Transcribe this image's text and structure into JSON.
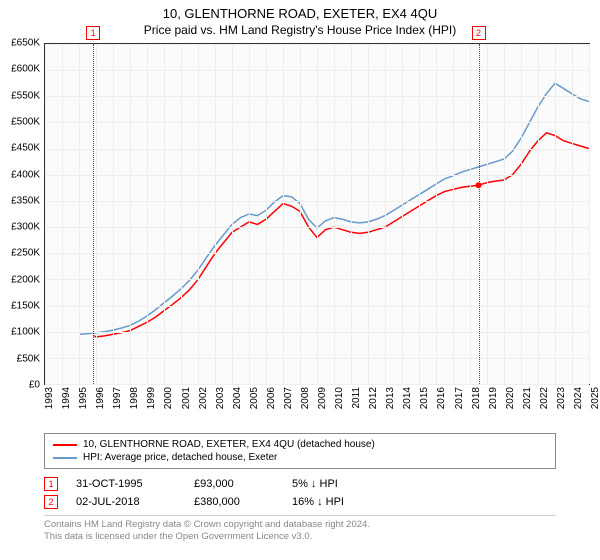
{
  "title": "10, GLENTHORNE ROAD, EXETER, EX4 4QU",
  "subtitle": "Price paid vs. HM Land Registry's House Price Index (HPI)",
  "chart": {
    "type": "line",
    "background_color": "#fbfbfb",
    "grid_color": "#eeeeee",
    "border_color": "#333333",
    "y": {
      "min": 0,
      "max": 650,
      "ticks": [
        0,
        50,
        100,
        150,
        200,
        250,
        300,
        350,
        400,
        450,
        500,
        550,
        600,
        650
      ],
      "labels": [
        "£0",
        "£50K",
        "£100K",
        "£150K",
        "£200K",
        "£250K",
        "£300K",
        "£350K",
        "£400K",
        "£450K",
        "£500K",
        "£550K",
        "£600K",
        "£650K"
      ],
      "label_fontsize": 10
    },
    "x": {
      "min": 1993,
      "max": 2025,
      "ticks": [
        1993,
        1994,
        1995,
        1996,
        1997,
        1998,
        1999,
        2000,
        2001,
        2002,
        2003,
        2004,
        2005,
        2006,
        2007,
        2008,
        2009,
        2010,
        2011,
        2012,
        2013,
        2014,
        2015,
        2016,
        2017,
        2018,
        2019,
        2020,
        2021,
        2022,
        2023,
        2024,
        2025
      ],
      "label_fontsize": 10
    },
    "markers": [
      {
        "id": "1",
        "x": 1995.83,
        "color": "#ff0000"
      },
      {
        "id": "2",
        "x": 2018.5,
        "color": "#ff0000"
      }
    ],
    "series": [
      {
        "name": "property",
        "label": "10, GLENTHORNE ROAD, EXETER, EX4 4QU (detached house)",
        "color": "#ff0000",
        "line_width": 1.5,
        "points": [
          [
            1995.83,
            93
          ],
          [
            1996.0,
            90
          ],
          [
            1996.5,
            92
          ],
          [
            1997.0,
            95
          ],
          [
            1997.5,
            98
          ],
          [
            1998.0,
            102
          ],
          [
            1998.5,
            110
          ],
          [
            1999.0,
            118
          ],
          [
            1999.5,
            128
          ],
          [
            2000.0,
            140
          ],
          [
            2000.5,
            152
          ],
          [
            2001.0,
            165
          ],
          [
            2001.5,
            180
          ],
          [
            2002.0,
            200
          ],
          [
            2002.5,
            225
          ],
          [
            2003.0,
            250
          ],
          [
            2003.5,
            270
          ],
          [
            2004.0,
            290
          ],
          [
            2004.5,
            300
          ],
          [
            2005.0,
            310
          ],
          [
            2005.5,
            305
          ],
          [
            2006.0,
            315
          ],
          [
            2006.5,
            330
          ],
          [
            2007.0,
            345
          ],
          [
            2007.5,
            340
          ],
          [
            2008.0,
            330
          ],
          [
            2008.5,
            300
          ],
          [
            2009.0,
            280
          ],
          [
            2009.5,
            295
          ],
          [
            2010.0,
            300
          ],
          [
            2010.5,
            295
          ],
          [
            2011.0,
            290
          ],
          [
            2011.5,
            288
          ],
          [
            2012.0,
            290
          ],
          [
            2012.5,
            295
          ],
          [
            2013.0,
            300
          ],
          [
            2013.5,
            310
          ],
          [
            2014.0,
            320
          ],
          [
            2014.5,
            330
          ],
          [
            2015.0,
            340
          ],
          [
            2015.5,
            350
          ],
          [
            2016.0,
            360
          ],
          [
            2016.5,
            368
          ],
          [
            2017.0,
            372
          ],
          [
            2017.5,
            376
          ],
          [
            2018.0,
            378
          ],
          [
            2018.5,
            380
          ],
          [
            2019.0,
            385
          ],
          [
            2019.5,
            388
          ],
          [
            2020.0,
            390
          ],
          [
            2020.5,
            400
          ],
          [
            2021.0,
            420
          ],
          [
            2021.5,
            445
          ],
          [
            2022.0,
            465
          ],
          [
            2022.5,
            480
          ],
          [
            2023.0,
            475
          ],
          [
            2023.5,
            465
          ],
          [
            2024.0,
            460
          ],
          [
            2024.5,
            455
          ],
          [
            2025.0,
            450
          ]
        ]
      },
      {
        "name": "hpi",
        "label": "HPI: Average price, detached house, Exeter",
        "color": "#6699cc",
        "line_width": 1.5,
        "points": [
          [
            1995.0,
            95
          ],
          [
            1995.5,
            96
          ],
          [
            1996.0,
            98
          ],
          [
            1996.5,
            100
          ],
          [
            1997.0,
            103
          ],
          [
            1997.5,
            107
          ],
          [
            1998.0,
            112
          ],
          [
            1998.5,
            120
          ],
          [
            1999.0,
            130
          ],
          [
            1999.5,
            142
          ],
          [
            2000.0,
            155
          ],
          [
            2000.5,
            168
          ],
          [
            2001.0,
            182
          ],
          [
            2001.5,
            198
          ],
          [
            2002.0,
            218
          ],
          [
            2002.5,
            242
          ],
          [
            2003.0,
            265
          ],
          [
            2003.5,
            285
          ],
          [
            2004.0,
            305
          ],
          [
            2004.5,
            318
          ],
          [
            2005.0,
            325
          ],
          [
            2005.5,
            322
          ],
          [
            2006.0,
            332
          ],
          [
            2006.5,
            348
          ],
          [
            2007.0,
            360
          ],
          [
            2007.5,
            358
          ],
          [
            2008.0,
            345
          ],
          [
            2008.5,
            315
          ],
          [
            2009.0,
            298
          ],
          [
            2009.5,
            312
          ],
          [
            2010.0,
            318
          ],
          [
            2010.5,
            315
          ],
          [
            2011.0,
            310
          ],
          [
            2011.5,
            308
          ],
          [
            2012.0,
            310
          ],
          [
            2012.5,
            315
          ],
          [
            2013.0,
            322
          ],
          [
            2013.5,
            332
          ],
          [
            2014.0,
            342
          ],
          [
            2014.5,
            352
          ],
          [
            2015.0,
            362
          ],
          [
            2015.5,
            372
          ],
          [
            2016.0,
            382
          ],
          [
            2016.5,
            392
          ],
          [
            2017.0,
            398
          ],
          [
            2017.5,
            405
          ],
          [
            2018.0,
            410
          ],
          [
            2018.5,
            415
          ],
          [
            2019.0,
            420
          ],
          [
            2019.5,
            425
          ],
          [
            2020.0,
            430
          ],
          [
            2020.5,
            445
          ],
          [
            2021.0,
            470
          ],
          [
            2021.5,
            500
          ],
          [
            2022.0,
            530
          ],
          [
            2022.5,
            555
          ],
          [
            2023.0,
            575
          ],
          [
            2023.5,
            565
          ],
          [
            2024.0,
            555
          ],
          [
            2024.5,
            545
          ],
          [
            2025.0,
            540
          ]
        ]
      }
    ]
  },
  "legend": {
    "items": [
      {
        "color": "#ff0000",
        "label": "10, GLENTHORNE ROAD, EXETER, EX4 4QU (detached house)"
      },
      {
        "color": "#6699cc",
        "label": "HPI: Average price, detached house, Exeter"
      }
    ]
  },
  "sales": [
    {
      "id": "1",
      "date": "31-OCT-1995",
      "price": "£93,000",
      "diff": "5% ↓ HPI"
    },
    {
      "id": "2",
      "date": "02-JUL-2018",
      "price": "£380,000",
      "diff": "16% ↓ HPI"
    }
  ],
  "footer": {
    "line1": "Contains HM Land Registry data © Crown copyright and database right 2024.",
    "line2": "This data is licensed under the Open Government Licence v3.0."
  }
}
